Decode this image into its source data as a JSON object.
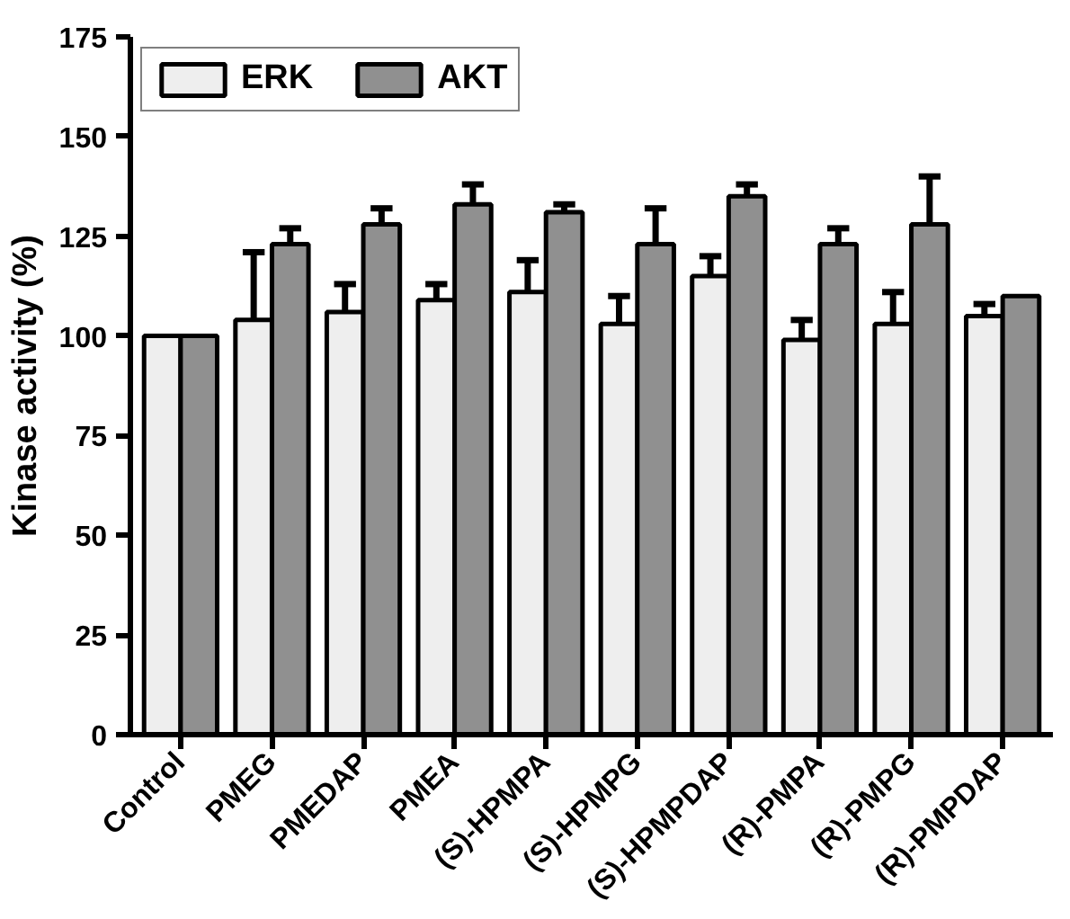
{
  "chart_data": {
    "type": "bar",
    "ylabel": "Kinase activity (%)",
    "categories": [
      "Control",
      "PMEG",
      "PMEDAP",
      "PMEA",
      "(S)-HPMPA",
      "(S)-HPMPG",
      "(S)-HPMPDAP",
      "(R)-PMPA",
      "(R)-PMPG",
      "(R)-PMPDAP"
    ],
    "series": [
      {
        "name": "ERK",
        "color": "#eeeeee",
        "values": [
          100,
          104,
          106,
          109,
          111,
          103,
          115,
          99,
          103,
          105
        ],
        "errors": [
          null,
          [
            104,
            121
          ],
          [
            106,
            113
          ],
          [
            109,
            113
          ],
          [
            111,
            119
          ],
          [
            103,
            110
          ],
          [
            115,
            120
          ],
          [
            99,
            104
          ],
          [
            103,
            111
          ],
          [
            105,
            108
          ]
        ]
      },
      {
        "name": "AKT",
        "color": "#909090",
        "values": [
          100,
          123,
          128,
          133,
          131,
          123,
          135,
          123,
          128,
          110
        ],
        "errors": [
          null,
          [
            123,
            127
          ],
          [
            128,
            132
          ],
          [
            133,
            138
          ],
          [
            131,
            133
          ],
          [
            123,
            132
          ],
          [
            135,
            138
          ],
          [
            123,
            127
          ],
          [
            128,
            140
          ],
          null
        ]
      }
    ],
    "ylim": [
      0,
      175
    ],
    "yticks": [
      0,
      25,
      50,
      75,
      100,
      125,
      150,
      175
    ],
    "grid": false,
    "legend": "top left"
  }
}
